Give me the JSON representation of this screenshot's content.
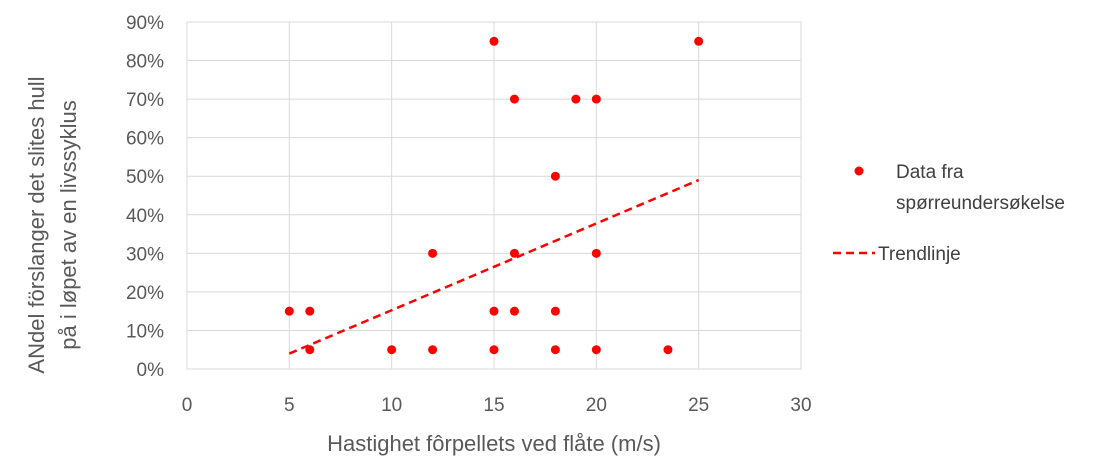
{
  "chart_data": {
    "type": "scatter",
    "xlabel": "Hastighet fôrpellets ved flåte (m/s)",
    "ylabel_lines": [
      "ANdel förslanger det slites hull",
      "på i løpet av en livssyklus"
    ],
    "xlim": [
      0,
      30
    ],
    "ylim": [
      0,
      90
    ],
    "x_ticks": [
      0,
      5,
      10,
      15,
      20,
      25,
      30
    ],
    "y_ticks": [
      0,
      10,
      20,
      30,
      40,
      50,
      60,
      70,
      80,
      90
    ],
    "x_tick_labels": [
      "0",
      "5",
      "10",
      "15",
      "20",
      "25",
      "30"
    ],
    "y_tick_labels": [
      "0%",
      "10%",
      "20%",
      "30%",
      "40%",
      "50%",
      "60%",
      "70%",
      "80%",
      "90%"
    ],
    "grid": true,
    "legend_position": "right",
    "series": [
      {
        "name": "Data fra spørreundersøkelse",
        "legend_lines": [
          "Data fra",
          "spørreundersøkelse"
        ],
        "color": "#ff0000",
        "points": [
          {
            "x": 5,
            "y": 15
          },
          {
            "x": 6,
            "y": 15
          },
          {
            "x": 6,
            "y": 5
          },
          {
            "x": 10,
            "y": 5
          },
          {
            "x": 12,
            "y": 5
          },
          {
            "x": 12,
            "y": 30
          },
          {
            "x": 15,
            "y": 85
          },
          {
            "x": 15,
            "y": 15
          },
          {
            "x": 15,
            "y": 5
          },
          {
            "x": 16,
            "y": 70
          },
          {
            "x": 16,
            "y": 30
          },
          {
            "x": 16,
            "y": 15
          },
          {
            "x": 18,
            "y": 50
          },
          {
            "x": 18,
            "y": 15
          },
          {
            "x": 18,
            "y": 5
          },
          {
            "x": 19,
            "y": 70
          },
          {
            "x": 20,
            "y": 70
          },
          {
            "x": 20,
            "y": 30
          },
          {
            "x": 20,
            "y": 5
          },
          {
            "x": 23.5,
            "y": 5
          },
          {
            "x": 25,
            "y": 85
          }
        ]
      },
      {
        "name": "Trendlinje",
        "color": "#ff0000",
        "style": "dashed",
        "line": [
          {
            "x": 5,
            "y": 4
          },
          {
            "x": 25,
            "y": 49
          }
        ]
      }
    ]
  }
}
